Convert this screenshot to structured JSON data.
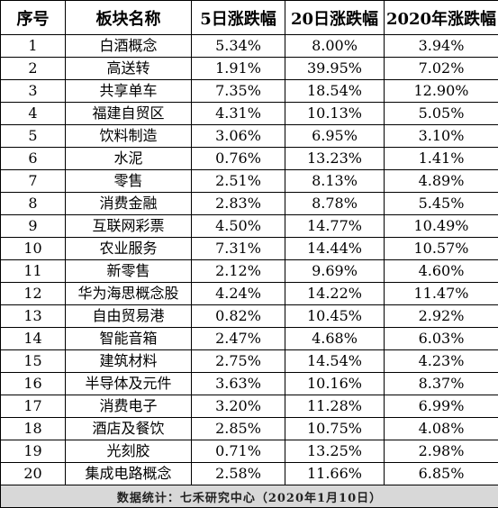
{
  "columns": [
    "序号",
    "板块名称",
    "5日涨跌幅",
    "20日涨跌幅",
    "2020年涨跌幅"
  ],
  "rows": [
    [
      "1",
      "白酒概念",
      "5.34%",
      "8.00%",
      "3.94%"
    ],
    [
      "2",
      "高送转",
      "1.91%",
      "39.95%",
      "7.02%"
    ],
    [
      "3",
      "共享单车",
      "7.35%",
      "18.54%",
      "12.90%"
    ],
    [
      "4",
      "福建自贸区",
      "4.31%",
      "10.13%",
      "5.05%"
    ],
    [
      "5",
      "饮料制造",
      "3.06%",
      "6.95%",
      "3.10%"
    ],
    [
      "6",
      "水泥",
      "0.76%",
      "13.23%",
      "1.41%"
    ],
    [
      "7",
      "零售",
      "2.51%",
      "8.13%",
      "4.89%"
    ],
    [
      "8",
      "消费金融",
      "2.83%",
      "8.78%",
      "5.45%"
    ],
    [
      "9",
      "互联网彩票",
      "4.50%",
      "14.77%",
      "10.49%"
    ],
    [
      "10",
      "农业服务",
      "7.31%",
      "14.44%",
      "10.57%"
    ],
    [
      "11",
      "新零售",
      "2.12%",
      "9.69%",
      "4.60%"
    ],
    [
      "12",
      "华为海思概念股",
      "4.24%",
      "14.22%",
      "11.47%"
    ],
    [
      "13",
      "自由贸易港",
      "0.82%",
      "10.45%",
      "2.92%"
    ],
    [
      "14",
      "智能音箱",
      "2.47%",
      "4.68%",
      "6.03%"
    ],
    [
      "15",
      "建筑材料",
      "2.75%",
      "14.54%",
      "4.23%"
    ],
    [
      "16",
      "半导体及元件",
      "3.63%",
      "10.16%",
      "8.37%"
    ],
    [
      "17",
      "消费电子",
      "3.20%",
      "11.28%",
      "6.99%"
    ],
    [
      "18",
      "酒店及餐饮",
      "2.85%",
      "10.75%",
      "4.08%"
    ],
    [
      "19",
      "光刻胶",
      "0.71%",
      "13.25%",
      "2.98%"
    ],
    [
      "20",
      "集成电路概念",
      "2.58%",
      "11.66%",
      "6.85%"
    ]
  ],
  "footer": "数据统计：七禾研究中心（2020年1月10日）"
}
